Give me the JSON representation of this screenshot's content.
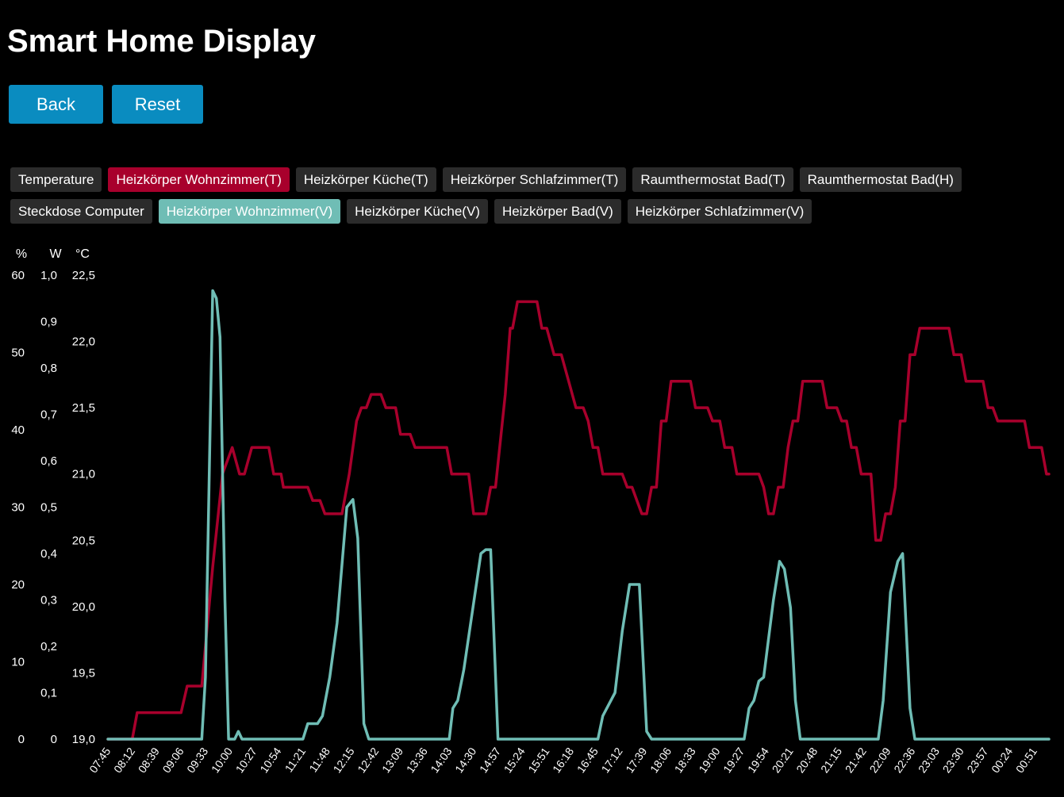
{
  "header": {
    "title": "Smart Home Display"
  },
  "buttons": {
    "back": "Back",
    "reset": "Reset"
  },
  "chips": {
    "row1": [
      {
        "label": "Temperature",
        "state": "off"
      },
      {
        "label": "Heizkörper Wohnzimmer(T)",
        "state": "red"
      },
      {
        "label": "Heizkörper Küche(T)",
        "state": "off"
      },
      {
        "label": "Heizkörper Schlafzimmer(T)",
        "state": "off"
      },
      {
        "label": "Raumthermostat Bad(T)",
        "state": "off"
      },
      {
        "label": "Raumthermostat Bad(H)",
        "state": "off"
      }
    ],
    "row2": [
      {
        "label": "Steckdose Computer",
        "state": "off"
      },
      {
        "label": "Heizkörper Wohnzimmer(V)",
        "state": "teal"
      },
      {
        "label": "Heizkörper Küche(V)",
        "state": "off"
      },
      {
        "label": "Heizkörper Bad(V)",
        "state": "off"
      },
      {
        "label": "Heizkörper Schlafzimmer(V)",
        "state": "off"
      }
    ]
  },
  "chart_data": {
    "type": "line",
    "axes": {
      "percent": {
        "unit": "%",
        "ticks": [
          "60",
          "50",
          "40",
          "30",
          "20",
          "10",
          "0"
        ],
        "range": [
          0,
          60
        ]
      },
      "watt": {
        "unit": "W",
        "ticks": [
          "1,0",
          "0,9",
          "0,8",
          "0,7",
          "0,6",
          "0,5",
          "0,4",
          "0,3",
          "0,2",
          "0,1",
          "0"
        ],
        "range": [
          0,
          1
        ]
      },
      "celsius": {
        "unit": "°C",
        "ticks": [
          "22,5",
          "22,0",
          "21,5",
          "21,0",
          "20,5",
          "20,0",
          "19,5",
          "19,0"
        ],
        "range": [
          19,
          22.5
        ]
      }
    },
    "x_labels": [
      "07:45",
      "08:12",
      "08:39",
      "09:06",
      "09:33",
      "10:00",
      "10:27",
      "10:54",
      "11:21",
      "11:48",
      "12:15",
      "12:42",
      "13:09",
      "13:36",
      "14:03",
      "14:30",
      "14:57",
      "15:24",
      "15:51",
      "16:18",
      "16:45",
      "17:12",
      "17:39",
      "18:06",
      "18:33",
      "19:00",
      "19:27",
      "19:54",
      "20:21",
      "20:48",
      "21:15",
      "21:42",
      "22:09",
      "22:36",
      "23:03",
      "23:30",
      "23:57",
      "00:24",
      "00:51"
    ],
    "x_range": [
      0,
      38.6
    ],
    "grid": false,
    "legend": "none",
    "series": [
      {
        "axis": "celsius",
        "color": "#a8002c",
        "points": [
          [
            0,
            19
          ],
          [
            1,
            19
          ],
          [
            1.2,
            19.2
          ],
          [
            2,
            19.2
          ],
          [
            3,
            19.2
          ],
          [
            3.25,
            19.4
          ],
          [
            3.85,
            19.4
          ],
          [
            4.3,
            20.3
          ],
          [
            4.7,
            21
          ],
          [
            5.1,
            21.2
          ],
          [
            5.4,
            21
          ],
          [
            5.6,
            21
          ],
          [
            5.9,
            21.2
          ],
          [
            6.6,
            21.2
          ],
          [
            6.8,
            21
          ],
          [
            7.1,
            21
          ],
          [
            7.2,
            20.9
          ],
          [
            7.5,
            20.9
          ],
          [
            8.2,
            20.9
          ],
          [
            8.4,
            20.8
          ],
          [
            8.7,
            20.8
          ],
          [
            8.9,
            20.7
          ],
          [
            9.6,
            20.7
          ],
          [
            9.9,
            21
          ],
          [
            10.2,
            21.4
          ],
          [
            10.4,
            21.5
          ],
          [
            10.6,
            21.5
          ],
          [
            10.8,
            21.6
          ],
          [
            11.2,
            21.6
          ],
          [
            11.4,
            21.5
          ],
          [
            11.8,
            21.5
          ],
          [
            12,
            21.3
          ],
          [
            12.4,
            21.3
          ],
          [
            12.6,
            21.2
          ],
          [
            13.9,
            21.2
          ],
          [
            14.1,
            21
          ],
          [
            14.8,
            21
          ],
          [
            15,
            20.7
          ],
          [
            15.5,
            20.7
          ],
          [
            15.7,
            20.9
          ],
          [
            15.9,
            20.9
          ],
          [
            16.3,
            21.6
          ],
          [
            16.5,
            22.1
          ],
          [
            16.6,
            22.1
          ],
          [
            16.8,
            22.3
          ],
          [
            17.6,
            22.3
          ],
          [
            17.8,
            22.1
          ],
          [
            18,
            22.1
          ],
          [
            18.3,
            21.9
          ],
          [
            18.6,
            21.9
          ],
          [
            18.9,
            21.7
          ],
          [
            19.2,
            21.5
          ],
          [
            19.5,
            21.5
          ],
          [
            19.7,
            21.4
          ],
          [
            19.9,
            21.2
          ],
          [
            20.1,
            21.2
          ],
          [
            20.3,
            21
          ],
          [
            21.1,
            21
          ],
          [
            21.3,
            20.9
          ],
          [
            21.5,
            20.9
          ],
          [
            21.7,
            20.8
          ],
          [
            21.9,
            20.7
          ],
          [
            22.1,
            20.7
          ],
          [
            22.3,
            20.9
          ],
          [
            22.5,
            20.9
          ],
          [
            22.7,
            21.4
          ],
          [
            22.9,
            21.4
          ],
          [
            23.1,
            21.7
          ],
          [
            23.9,
            21.7
          ],
          [
            24.1,
            21.5
          ],
          [
            24.6,
            21.5
          ],
          [
            24.8,
            21.4
          ],
          [
            25.1,
            21.4
          ],
          [
            25.3,
            21.2
          ],
          [
            25.6,
            21.2
          ],
          [
            25.8,
            21
          ],
          [
            26.7,
            21
          ],
          [
            26.9,
            20.9
          ],
          [
            27.1,
            20.7
          ],
          [
            27.3,
            20.7
          ],
          [
            27.5,
            20.9
          ],
          [
            27.7,
            20.9
          ],
          [
            27.9,
            21.2
          ],
          [
            28.1,
            21.4
          ],
          [
            28.3,
            21.4
          ],
          [
            28.5,
            21.7
          ],
          [
            29.3,
            21.7
          ],
          [
            29.5,
            21.5
          ],
          [
            29.9,
            21.5
          ],
          [
            30.1,
            21.4
          ],
          [
            30.3,
            21.4
          ],
          [
            30.5,
            21.2
          ],
          [
            30.7,
            21.2
          ],
          [
            30.9,
            21
          ],
          [
            31.3,
            21
          ],
          [
            31.5,
            20.5
          ],
          [
            31.7,
            20.5
          ],
          [
            31.9,
            20.7
          ],
          [
            32.1,
            20.7
          ],
          [
            32.3,
            20.9
          ],
          [
            32.5,
            21.4
          ],
          [
            32.7,
            21.4
          ],
          [
            32.9,
            21.9
          ],
          [
            33.1,
            21.9
          ],
          [
            33.3,
            22.1
          ],
          [
            34.5,
            22.1
          ],
          [
            34.7,
            21.9
          ],
          [
            35,
            21.9
          ],
          [
            35.2,
            21.7
          ],
          [
            35.9,
            21.7
          ],
          [
            36.1,
            21.5
          ],
          [
            36.3,
            21.5
          ],
          [
            36.5,
            21.4
          ],
          [
            37.6,
            21.4
          ],
          [
            37.8,
            21.2
          ],
          [
            38.3,
            21.2
          ],
          [
            38.5,
            21
          ],
          [
            38.6,
            21
          ]
        ]
      },
      {
        "axis": "percent",
        "color": "#6fbdb5",
        "points": [
          [
            0,
            0
          ],
          [
            3.85,
            0
          ],
          [
            4,
            8
          ],
          [
            4.3,
            58
          ],
          [
            4.45,
            57
          ],
          [
            4.6,
            52
          ],
          [
            4.8,
            18
          ],
          [
            4.95,
            0
          ],
          [
            5.2,
            0
          ],
          [
            5.35,
            1
          ],
          [
            5.5,
            0
          ],
          [
            8,
            0
          ],
          [
            8.2,
            2
          ],
          [
            8.6,
            2
          ],
          [
            8.8,
            3
          ],
          [
            9.1,
            8
          ],
          [
            9.4,
            15
          ],
          [
            9.8,
            30
          ],
          [
            10.05,
            31
          ],
          [
            10.25,
            26
          ],
          [
            10.5,
            2
          ],
          [
            10.7,
            0
          ],
          [
            14,
            0
          ],
          [
            14.15,
            4
          ],
          [
            14.35,
            5
          ],
          [
            14.6,
            9
          ],
          [
            15.3,
            24
          ],
          [
            15.5,
            24.5
          ],
          [
            15.7,
            24.5
          ],
          [
            16,
            0
          ],
          [
            20.1,
            0
          ],
          [
            20.3,
            3
          ],
          [
            20.8,
            6
          ],
          [
            21.1,
            14
          ],
          [
            21.4,
            20
          ],
          [
            21.8,
            20
          ],
          [
            22.1,
            1
          ],
          [
            22.3,
            0
          ],
          [
            26.1,
            0
          ],
          [
            26.3,
            4
          ],
          [
            26.5,
            5
          ],
          [
            26.7,
            7.5
          ],
          [
            26.9,
            8
          ],
          [
            27.3,
            18
          ],
          [
            27.55,
            23
          ],
          [
            27.75,
            22
          ],
          [
            28,
            17
          ],
          [
            28.2,
            5
          ],
          [
            28.4,
            0
          ],
          [
            31.6,
            0
          ],
          [
            31.8,
            5
          ],
          [
            32.1,
            19
          ],
          [
            32.4,
            23
          ],
          [
            32.6,
            24
          ],
          [
            32.9,
            4
          ],
          [
            33.1,
            0
          ],
          [
            38.6,
            0
          ]
        ]
      }
    ]
  }
}
